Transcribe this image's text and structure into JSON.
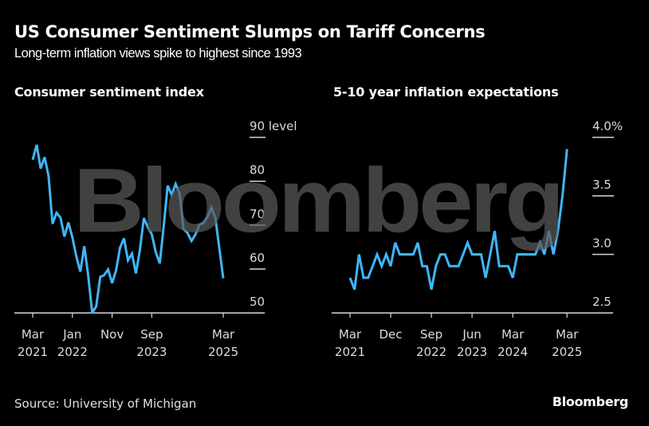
{
  "header": {
    "title": "US Consumer Sentiment Slumps on Tariff Concerns",
    "subtitle": "Long-term inflation views spike to highest since 1993"
  },
  "footer": {
    "source": "Source: University of Michigan",
    "brand": "Bloomberg"
  },
  "watermark": "Bloomberg",
  "colors": {
    "line": "#3fb6f8",
    "background": "#000000",
    "axis": "#d9d9d9",
    "watermark": "#5a5a5a"
  },
  "chart_data": [
    {
      "type": "line",
      "title": "Consumer sentiment index",
      "xlabel": "",
      "ylabel": "level",
      "ylim": [
        50,
        90
      ],
      "yticks": [
        {
          "value": 90,
          "label": "90 level"
        },
        {
          "value": 80,
          "label": "80"
        },
        {
          "value": 70,
          "label": "70"
        },
        {
          "value": 60,
          "label": "60"
        },
        {
          "value": 50,
          "label": "50"
        }
      ],
      "xticks": [
        {
          "month_index": 0,
          "label1": "Mar",
          "label2": "2021"
        },
        {
          "month_index": 10,
          "label1": "Jan",
          "label2": "2022"
        },
        {
          "month_index": 20,
          "label1": "Nov",
          "label2": ""
        },
        {
          "month_index": 30,
          "label1": "Sep",
          "label2": "2023"
        },
        {
          "month_index": 48,
          "label1": "Mar",
          "label2": "2025"
        }
      ],
      "x_start": "2021-03",
      "x_end": "2025-03",
      "series": [
        {
          "name": "Consumer sentiment index",
          "values": [
            84.9,
            88.3,
            82.9,
            85.5,
            81.2,
            70.3,
            72.8,
            71.7,
            67.4,
            70.6,
            67.2,
            62.8,
            59.4,
            65.2,
            58.4,
            50.0,
            51.5,
            58.2,
            58.6,
            59.9,
            56.8,
            59.7,
            64.9,
            67.0,
            62.0,
            63.5,
            59.0,
            64.4,
            71.6,
            69.5,
            67.9,
            63.8,
            61.3,
            69.7,
            79.0,
            76.9,
            79.4,
            77.2,
            69.1,
            68.2,
            66.4,
            67.9,
            70.1,
            70.5,
            71.8,
            74.0,
            71.7,
            64.7,
            57.9
          ]
        }
      ],
      "grid": false,
      "legend": "none"
    },
    {
      "type": "line",
      "title": "5-10 year inflation expectations",
      "xlabel": "",
      "ylabel": "%",
      "ylim": [
        2.5,
        4.0
      ],
      "yticks": [
        {
          "value": 4.0,
          "label": "4.0%"
        },
        {
          "value": 3.5,
          "label": "3.5"
        },
        {
          "value": 3.0,
          "label": "3.0"
        },
        {
          "value": 2.5,
          "label": "2.5"
        }
      ],
      "xticks": [
        {
          "month_index": 0,
          "label1": "Mar",
          "label2": "2021"
        },
        {
          "month_index": 9,
          "label1": "Dec",
          "label2": ""
        },
        {
          "month_index": 18,
          "label1": "Sep",
          "label2": "2022"
        },
        {
          "month_index": 27,
          "label1": "Jun",
          "label2": "2023"
        },
        {
          "month_index": 36,
          "label1": "Mar",
          "label2": "2024"
        },
        {
          "month_index": 48,
          "label1": "Mar",
          "label2": "2025"
        }
      ],
      "x_start": "2021-03",
      "x_end": "2025-03",
      "series": [
        {
          "name": "5-10 year inflation expectations",
          "values": [
            2.8,
            2.7,
            3.0,
            2.8,
            2.8,
            2.9,
            3.0,
            2.9,
            3.0,
            2.9,
            3.1,
            3.0,
            3.0,
            3.0,
            3.0,
            3.1,
            2.9,
            2.9,
            2.7,
            2.9,
            3.0,
            3.0,
            2.9,
            2.9,
            2.9,
            3.0,
            3.1,
            3.0,
            3.0,
            3.0,
            2.8,
            3.0,
            3.2,
            2.9,
            2.9,
            2.9,
            2.8,
            3.0,
            3.0,
            3.0,
            3.0,
            3.0,
            3.1,
            3.0,
            3.2,
            3.0,
            3.2,
            3.5,
            3.9
          ]
        }
      ],
      "grid": false,
      "legend": "none"
    }
  ]
}
